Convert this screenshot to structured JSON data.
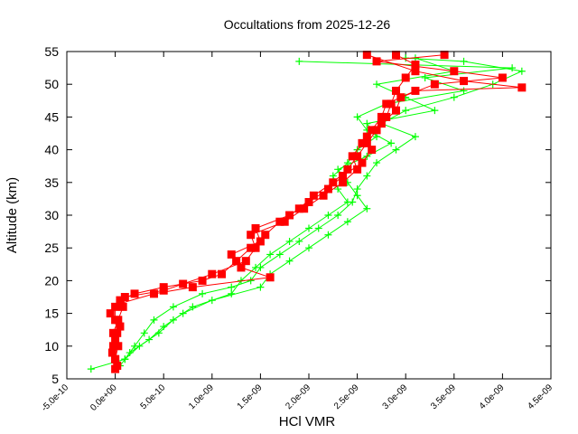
{
  "chart_data": {
    "type": "line",
    "title": "Occultations from 2025-12-26",
    "xlabel": "HCl VMR",
    "ylabel": "Altitude (km)",
    "xlim": [
      -5e-10,
      4.5e-09
    ],
    "ylim": [
      5,
      55
    ],
    "xticks": [
      "-5.0e-10",
      "0.0e+00",
      "5.0e-10",
      "1.0e-09",
      "1.5e-09",
      "2.0e-09",
      "2.5e-09",
      "3.0e-09",
      "3.5e-09",
      "4.0e-09",
      "4.5e-09"
    ],
    "yticks": [
      "5",
      "10",
      "15",
      "20",
      "25",
      "30",
      "35",
      "40",
      "45",
      "50",
      "55"
    ],
    "grid": false,
    "legend": "none",
    "colors": {
      "red_series": "#ff0000",
      "green_series": "#00ff00"
    },
    "series": [
      {
        "color": "#ff0000",
        "marker": "square",
        "points": [
          [
            0,
            6.5
          ],
          [
            0,
            8
          ],
          [
            -2e-11,
            10
          ],
          [
            2e-11,
            12
          ],
          [
            0,
            14
          ],
          [
            0,
            16
          ],
          [
            5e-11,
            17
          ],
          [
            2e-10,
            18
          ],
          [
            5e-10,
            19
          ],
          [
            9e-10,
            20
          ],
          [
            1.1e-09,
            21
          ],
          [
            1.25e-09,
            23
          ],
          [
            1.4e-09,
            25
          ],
          [
            1.55e-09,
            27
          ],
          [
            1.7e-09,
            29
          ],
          [
            1.9e-09,
            31
          ],
          [
            2.05e-09,
            33
          ],
          [
            2.25e-09,
            35
          ],
          [
            2.4e-09,
            37
          ],
          [
            2.5e-09,
            39
          ],
          [
            2.6e-09,
            41
          ],
          [
            2.7e-09,
            43
          ],
          [
            2.8e-09,
            45
          ],
          [
            2.85e-09,
            47
          ],
          [
            2.9e-09,
            49
          ],
          [
            3e-09,
            51
          ],
          [
            3.1e-09,
            53
          ],
          [
            2.9e-09,
            54.5
          ]
        ]
      },
      {
        "color": "#ff0000",
        "marker": "square",
        "points": [
          [
            2e-11,
            7
          ],
          [
            -3e-11,
            9
          ],
          [
            0,
            11
          ],
          [
            5e-11,
            13
          ],
          [
            -5e-11,
            15
          ],
          [
            5e-11,
            16.5
          ],
          [
            4e-10,
            18
          ],
          [
            8e-10,
            19
          ],
          [
            1.6e-09,
            20.5
          ],
          [
            1.3e-09,
            22
          ],
          [
            1.2e-09,
            24
          ],
          [
            1.5e-09,
            26
          ],
          [
            1.45e-09,
            28
          ],
          [
            1.8e-09,
            30
          ],
          [
            2e-09,
            32
          ],
          [
            2.2e-09,
            34
          ],
          [
            2.35e-09,
            36
          ],
          [
            2.55e-09,
            38
          ],
          [
            2.65e-09,
            40
          ],
          [
            2.6e-09,
            42
          ],
          [
            2.75e-09,
            44
          ],
          [
            2.9e-09,
            46
          ],
          [
            2.95e-09,
            48
          ],
          [
            3.3e-09,
            50
          ],
          [
            4e-09,
            51
          ],
          [
            3.5e-09,
            52
          ],
          [
            2.7e-09,
            53.5
          ],
          [
            3.4e-09,
            54.5
          ]
        ]
      },
      {
        "color": "#ff0000",
        "marker": "square",
        "points": [
          [
            0,
            8
          ],
          [
            3e-11,
            10
          ],
          [
            -2e-11,
            12
          ],
          [
            3e-11,
            14
          ],
          [
            8e-11,
            16
          ],
          [
            1e-10,
            17.5
          ],
          [
            5e-10,
            18.5
          ],
          [
            7e-10,
            19.5
          ],
          [
            1e-09,
            21
          ],
          [
            1.35e-09,
            23
          ],
          [
            1.45e-09,
            25
          ],
          [
            1.4e-09,
            27
          ],
          [
            1.75e-09,
            29
          ],
          [
            1.95e-09,
            31
          ],
          [
            2.15e-09,
            33
          ],
          [
            2.35e-09,
            35
          ],
          [
            2.5e-09,
            37
          ],
          [
            2.45e-09,
            39
          ],
          [
            2.55e-09,
            41
          ],
          [
            2.65e-09,
            43
          ],
          [
            2.75e-09,
            45
          ],
          [
            2.8e-09,
            47
          ],
          [
            3.1e-09,
            49
          ],
          [
            4.2e-09,
            49.5
          ],
          [
            3.6e-09,
            50.5
          ],
          [
            3.1e-09,
            52
          ],
          [
            2.6e-09,
            54.5
          ]
        ]
      },
      {
        "color": "#00ff00",
        "marker": "plus",
        "points": [
          [
            -2.5e-10,
            6.5
          ],
          [
            1e-10,
            8
          ],
          [
            2e-10,
            10
          ],
          [
            3e-10,
            12
          ],
          [
            4e-10,
            14
          ],
          [
            6e-10,
            16
          ],
          [
            9e-10,
            18
          ],
          [
            1.2e-09,
            19
          ],
          [
            1.4e-09,
            20
          ],
          [
            1.5e-09,
            22
          ],
          [
            1.7e-09,
            24
          ],
          [
            1.9e-09,
            26
          ],
          [
            2.1e-09,
            28
          ],
          [
            2.3e-09,
            30
          ],
          [
            2.45e-09,
            32
          ],
          [
            2.5e-09,
            34
          ],
          [
            2.6e-09,
            36
          ],
          [
            2.7e-09,
            38
          ],
          [
            2.9e-09,
            40
          ],
          [
            3.1e-09,
            42
          ],
          [
            2.75e-09,
            44
          ],
          [
            3e-09,
            46
          ],
          [
            3.5e-09,
            48
          ],
          [
            3.9e-09,
            50
          ],
          [
            4.2e-09,
            52
          ],
          [
            3.6e-09,
            53.5
          ],
          [
            3e-09,
            54
          ]
        ]
      },
      {
        "color": "#00ff00",
        "marker": "plus",
        "points": [
          [
            5e-11,
            7
          ],
          [
            1.5e-10,
            9
          ],
          [
            3.5e-10,
            11
          ],
          [
            5e-10,
            13
          ],
          [
            7e-10,
            15
          ],
          [
            1e-09,
            17
          ],
          [
            1.5e-09,
            19
          ],
          [
            1.6e-09,
            21
          ],
          [
            1.8e-09,
            23
          ],
          [
            2e-09,
            25
          ],
          [
            2.2e-09,
            27
          ],
          [
            2.4e-09,
            29
          ],
          [
            2.6e-09,
            31
          ],
          [
            2.5e-09,
            33
          ],
          [
            2.4e-09,
            35
          ],
          [
            2.3e-09,
            37
          ],
          [
            2.6e-09,
            39
          ],
          [
            2.85e-09,
            41
          ],
          [
            2.6e-09,
            43
          ],
          [
            2.5e-09,
            45
          ],
          [
            2.8e-09,
            47
          ],
          [
            3.6e-09,
            49
          ],
          [
            3.2e-09,
            51
          ],
          [
            4.1e-09,
            52.5
          ],
          [
            1.9e-09,
            53.5
          ]
        ]
      },
      {
        "color": "#00ff00",
        "marker": "plus",
        "points": [
          [
            1e-10,
            8
          ],
          [
            2.5e-10,
            10
          ],
          [
            4.5e-10,
            12
          ],
          [
            6e-10,
            14
          ],
          [
            8e-10,
            16
          ],
          [
            1.2e-09,
            18
          ],
          [
            1.3e-09,
            20
          ],
          [
            1.45e-09,
            22
          ],
          [
            1.6e-09,
            24
          ],
          [
            1.8e-09,
            26
          ],
          [
            2e-09,
            28
          ],
          [
            2.2e-09,
            30
          ],
          [
            2.4e-09,
            32
          ],
          [
            2.3e-09,
            34
          ],
          [
            2.25e-09,
            36
          ],
          [
            2.4e-09,
            38
          ],
          [
            2.5e-09,
            40
          ],
          [
            2.7e-09,
            42
          ],
          [
            2.6e-09,
            44
          ],
          [
            3.3e-09,
            46
          ],
          [
            3e-09,
            48
          ],
          [
            2.7e-09,
            50
          ],
          [
            3.5e-09,
            52
          ],
          [
            3.1e-09,
            54
          ]
        ]
      }
    ]
  }
}
